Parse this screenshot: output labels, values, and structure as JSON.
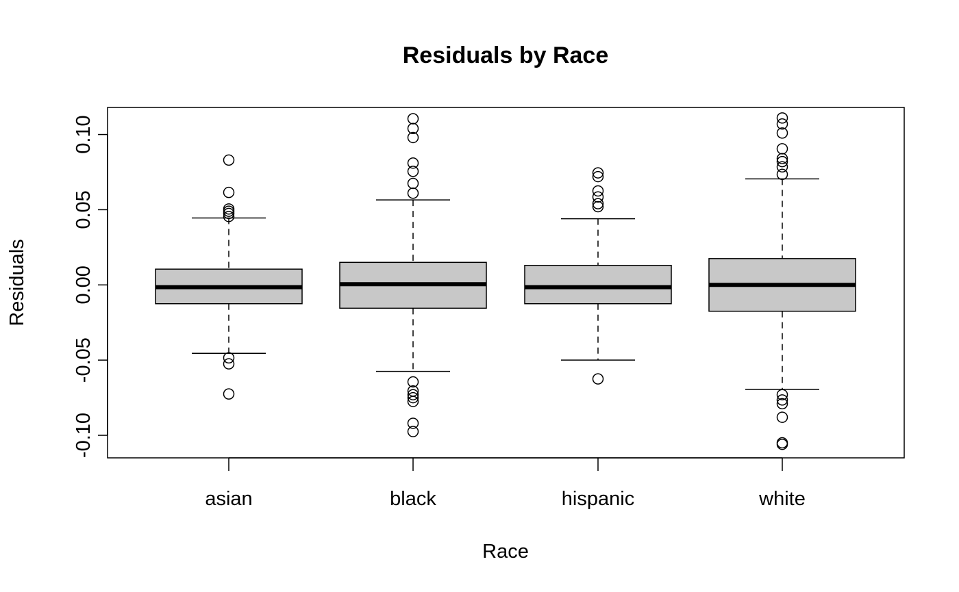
{
  "chart_data": {
    "type": "boxplot",
    "title": "Residuals by Race",
    "xlabel": "Race",
    "ylabel": "Residuals",
    "ylim": [
      -0.115,
      0.118
    ],
    "yticks": [
      -0.1,
      -0.05,
      0.0,
      0.05,
      0.1
    ],
    "ytick_labels": [
      "-0.10",
      "-0.05",
      "0.00",
      "0.05",
      "0.10"
    ],
    "box_fill": "#c8c8c8",
    "categories": [
      "asian",
      "black",
      "hispanic",
      "white"
    ],
    "boxes": [
      {
        "category": "asian",
        "q1": -0.0125,
        "median": -0.0015,
        "q3": 0.0105,
        "whisker_low": -0.0455,
        "whisker_high": 0.0445,
        "outliers": [
          0.083,
          0.0615,
          0.0505,
          0.049,
          0.0475,
          0.0455,
          -0.0485,
          -0.0525,
          -0.0725
        ]
      },
      {
        "category": "black",
        "q1": -0.0155,
        "median": 0.0005,
        "q3": 0.015,
        "whisker_low": -0.0575,
        "whisker_high": 0.0565,
        "outliers": [
          0.1105,
          0.104,
          0.098,
          0.081,
          0.0755,
          0.0675,
          0.061,
          -0.0645,
          -0.0705,
          -0.073,
          -0.075,
          -0.0775,
          -0.092,
          -0.0975
        ]
      },
      {
        "category": "hispanic",
        "q1": -0.0125,
        "median": -0.0015,
        "q3": 0.013,
        "whisker_low": -0.05,
        "whisker_high": 0.044,
        "outliers": [
          0.0745,
          0.072,
          0.0625,
          0.0585,
          0.054,
          0.052,
          -0.0625
        ]
      },
      {
        "category": "white",
        "q1": -0.0175,
        "median": 0.0,
        "q3": 0.0175,
        "whisker_low": -0.0695,
        "whisker_high": 0.0705,
        "outliers": [
          0.111,
          0.107,
          0.101,
          0.0905,
          0.084,
          0.082,
          0.0785,
          0.0735,
          -0.073,
          -0.0765,
          -0.079,
          -0.088,
          -0.105,
          -0.106
        ]
      }
    ]
  }
}
